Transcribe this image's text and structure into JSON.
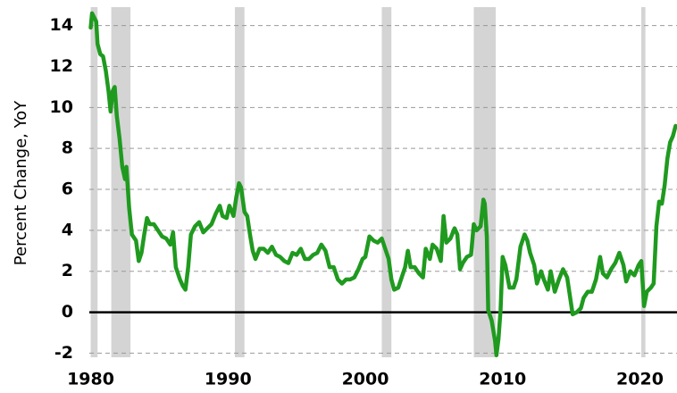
{
  "chart_data": {
    "type": "line",
    "ylabel": "Percent Change, YoY",
    "color": "#1f9a1f",
    "recession_color": "#d4d4d4",
    "recessions": [
      [
        1980.0,
        1980.5
      ],
      [
        1981.5,
        1982.9
      ],
      [
        1990.5,
        1991.2
      ],
      [
        2001.2,
        2001.9
      ],
      [
        2007.9,
        2009.5
      ],
      [
        2020.1,
        2020.4
      ]
    ],
    "x": [
      1980.0,
      1980.1,
      1980.25,
      1980.4,
      1980.5,
      1980.7,
      1980.9,
      1981.1,
      1981.3,
      1981.45,
      1981.6,
      1981.75,
      1981.9,
      1982.1,
      1982.3,
      1982.5,
      1982.6,
      1982.8,
      1983.0,
      1983.3,
      1983.5,
      1983.7,
      1983.9,
      1984.1,
      1984.3,
      1984.6,
      1984.9,
      1985.2,
      1985.5,
      1985.8,
      1986.0,
      1986.2,
      1986.5,
      1986.7,
      1986.9,
      1987.1,
      1987.3,
      1987.6,
      1987.9,
      1988.2,
      1988.5,
      1988.8,
      1989.1,
      1989.4,
      1989.6,
      1989.9,
      1990.1,
      1990.4,
      1990.6,
      1990.8,
      1990.95,
      1991.2,
      1991.4,
      1991.6,
      1991.8,
      1992.0,
      1992.3,
      1992.6,
      1992.9,
      1993.2,
      1993.5,
      1993.8,
      1994.1,
      1994.4,
      1994.7,
      1995.0,
      1995.3,
      1995.6,
      1995.9,
      1996.2,
      1996.5,
      1996.8,
      1997.1,
      1997.4,
      1997.7,
      1998.0,
      1998.3,
      1998.6,
      1998.9,
      1999.2,
      1999.5,
      1999.8,
      2000.0,
      2000.3,
      2000.6,
      2000.9,
      2001.2,
      2001.5,
      2001.7,
      2001.9,
      2002.1,
      2002.4,
      2002.7,
      2002.9,
      2003.1,
      2003.3,
      2003.6,
      2003.9,
      2004.2,
      2004.4,
      2004.7,
      2004.9,
      2005.2,
      2005.5,
      2005.7,
      2005.9,
      2006.2,
      2006.5,
      2006.7,
      2006.9,
      2007.1,
      2007.4,
      2007.7,
      2007.9,
      2008.1,
      2008.4,
      2008.6,
      2008.7,
      2008.85,
      2008.95,
      2009.2,
      2009.45,
      2009.55,
      2009.7,
      2009.85,
      2010.0,
      2010.2,
      2010.5,
      2010.8,
      2011.0,
      2011.3,
      2011.6,
      2011.8,
      2012.0,
      2012.3,
      2012.5,
      2012.8,
      2013.0,
      2013.3,
      2013.5,
      2013.8,
      2014.1,
      2014.4,
      2014.7,
      2014.9,
      2015.1,
      2015.4,
      2015.7,
      2015.9,
      2016.2,
      2016.5,
      2016.8,
      2017.1,
      2017.3,
      2017.6,
      2017.9,
      2018.2,
      2018.5,
      2018.8,
      2019.0,
      2019.3,
      2019.6,
      2019.9,
      2020.1,
      2020.3,
      2020.5,
      2020.8,
      2021.0,
      2021.2,
      2021.4,
      2021.6,
      2021.8,
      2022.0,
      2022.2,
      2022.4,
      2022.6
    ],
    "values": [
      13.9,
      14.6,
      14.4,
      14.2,
      13.1,
      12.6,
      12.5,
      11.8,
      10.8,
      9.8,
      10.8,
      11.0,
      9.6,
      8.5,
      7.1,
      6.5,
      7.1,
      5.1,
      3.8,
      3.5,
      2.5,
      2.9,
      3.8,
      4.6,
      4.3,
      4.3,
      4.0,
      3.7,
      3.6,
      3.3,
      3.9,
      2.2,
      1.6,
      1.3,
      1.1,
      2.2,
      3.8,
      4.2,
      4.4,
      3.9,
      4.1,
      4.3,
      4.8,
      5.2,
      4.7,
      4.6,
      5.2,
      4.7,
      5.6,
      6.3,
      6.1,
      4.9,
      4.7,
      3.8,
      3.0,
      2.6,
      3.1,
      3.1,
      2.9,
      3.2,
      2.8,
      2.7,
      2.5,
      2.4,
      2.9,
      2.8,
      3.1,
      2.6,
      2.6,
      2.8,
      2.9,
      3.3,
      3.0,
      2.2,
      2.2,
      1.6,
      1.4,
      1.6,
      1.6,
      1.7,
      2.1,
      2.6,
      2.7,
      3.7,
      3.5,
      3.4,
      3.6,
      3.0,
      2.6,
      1.6,
      1.1,
      1.2,
      1.8,
      2.2,
      3.0,
      2.2,
      2.2,
      1.9,
      1.7,
      3.1,
      2.6,
      3.3,
      3.1,
      2.5,
      4.7,
      3.4,
      3.6,
      4.1,
      3.8,
      2.1,
      2.4,
      2.7,
      2.8,
      4.3,
      4.0,
      4.2,
      5.5,
      5.3,
      3.7,
      0.1,
      -0.4,
      -1.4,
      -2.1,
      -1.3,
      0.1,
      2.7,
      2.3,
      1.2,
      1.2,
      1.6,
      3.2,
      3.8,
      3.5,
      2.9,
      2.3,
      1.4,
      2.0,
      1.6,
      1.1,
      2.0,
      1.0,
      1.6,
      2.1,
      1.7,
      0.8,
      -0.1,
      0.0,
      0.2,
      0.7,
      1.0,
      1.0,
      1.6,
      2.7,
      1.9,
      1.7,
      2.1,
      2.4,
      2.9,
      2.3,
      1.5,
      2.0,
      1.8,
      2.3,
      2.5,
      0.3,
      1.0,
      1.2,
      1.4,
      4.2,
      5.4,
      5.3,
      6.2,
      7.5,
      8.3,
      8.6,
      9.1
    ],
    "xlim": [
      1979.9,
      2022.7
    ],
    "xticks": [
      1980,
      1990,
      2000,
      2010,
      2020
    ],
    "ylim": [
      -2.2,
      14.9
    ],
    "yticks": [
      -2,
      0,
      2,
      4,
      6,
      8,
      10,
      12,
      14
    ],
    "grid": true
  }
}
